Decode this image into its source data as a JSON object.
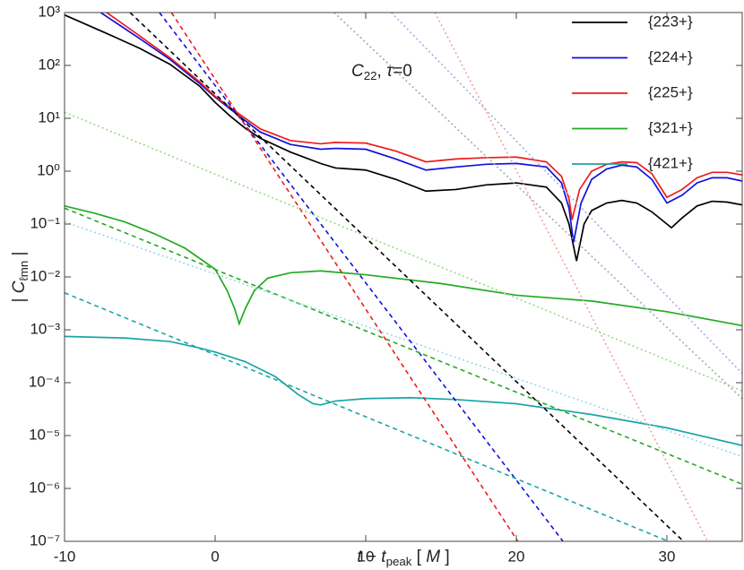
{
  "chart_data": {
    "type": "line",
    "annotation": [
      {
        "text": "C",
        "italic": true
      },
      {
        "text": "22",
        "sub": true
      },
      {
        "text": ", "
      },
      {
        "text": "τ",
        "italic": true
      },
      {
        "text": "=0"
      }
    ],
    "xlabel": [
      {
        "text": "t",
        "italic": true
      },
      {
        "text": " − "
      },
      {
        "text": "t",
        "italic": true
      },
      {
        "text": "peak",
        "sub": true
      },
      {
        "text": " [ "
      },
      {
        "text": "M",
        "italic": true
      },
      {
        "text": " ]"
      }
    ],
    "ylabel": [
      {
        "text": "| "
      },
      {
        "text": "C",
        "italic": true
      },
      {
        "text": "ℓmn",
        "sub": true
      },
      {
        "text": " |"
      }
    ],
    "xlim": [
      -10,
      35
    ],
    "xticks": [
      -10,
      0,
      10,
      20,
      30
    ],
    "ylim": [
      1e-07,
      1000
    ],
    "ylog": true,
    "yticks": [
      {
        "value": 1000,
        "label": "10³"
      },
      {
        "value": 100,
        "label": "10²"
      },
      {
        "value": 10,
        "label": "10¹"
      },
      {
        "value": 1,
        "label": "10⁰"
      },
      {
        "value": 0.1,
        "label": "10⁻¹"
      },
      {
        "value": 0.01,
        "label": "10⁻²"
      },
      {
        "value": 0.001,
        "label": "10⁻³"
      },
      {
        "value": 0.0001,
        "label": "10⁻⁴"
      },
      {
        "value": 1e-05,
        "label": "10⁻⁵"
      },
      {
        "value": 1e-06,
        "label": "10⁻⁶"
      },
      {
        "value": 1e-07,
        "label": "10⁻⁷"
      }
    ],
    "legend": "top-right",
    "series": [
      {
        "name": "{223+}",
        "color": "#000000",
        "dash": "solid",
        "x": [
          -10,
          -7,
          -5,
          -3,
          -1,
          0,
          1,
          2,
          3,
          5,
          7,
          8,
          10,
          12,
          14,
          16,
          18,
          20,
          22,
          23,
          23.5,
          24,
          24.5,
          25,
          26,
          27,
          28,
          29,
          30,
          30.3,
          31,
          32,
          33,
          34,
          35
        ],
        "values": [
          900,
          380,
          210,
          105,
          40,
          20,
          11,
          6.5,
          4.2,
          2.3,
          1.4,
          1.15,
          1.05,
          0.7,
          0.42,
          0.45,
          0.55,
          0.6,
          0.5,
          0.25,
          0.1,
          0.02,
          0.1,
          0.18,
          0.25,
          0.28,
          0.25,
          0.17,
          0.1,
          0.085,
          0.13,
          0.22,
          0.27,
          0.26,
          0.23
        ]
      },
      {
        "name": "{224+}",
        "color": "#1010e0",
        "dash": "solid",
        "x": [
          -7.6,
          -5,
          -3,
          -1,
          0,
          1,
          2,
          3,
          5,
          7,
          8,
          10,
          12,
          14,
          16,
          18,
          20,
          22,
          23,
          23.5,
          23.8,
          24.3,
          25,
          26,
          27,
          28,
          29,
          30,
          31,
          32,
          33,
          34,
          35
        ],
        "values": [
          1000,
          320,
          130,
          45,
          25,
          15,
          9,
          5.5,
          3.2,
          2.6,
          2.7,
          2.6,
          1.7,
          1.05,
          1.2,
          1.35,
          1.4,
          1.2,
          0.6,
          0.2,
          0.045,
          0.25,
          0.7,
          1.1,
          1.3,
          1.2,
          0.7,
          0.25,
          0.35,
          0.6,
          0.75,
          0.75,
          0.65
        ]
      },
      {
        "name": "{225+}",
        "color": "#ee1c1c",
        "dash": "solid",
        "x": [
          -7.2,
          -5,
          -3,
          -1,
          0,
          1,
          2,
          3,
          5,
          7,
          8,
          10,
          12,
          14,
          16,
          18,
          20,
          22,
          23,
          23.5,
          23.7,
          24.2,
          25,
          26,
          27,
          28,
          29,
          30,
          31,
          32,
          33,
          34,
          35
        ],
        "values": [
          1000,
          360,
          140,
          48,
          26,
          16,
          10,
          6.3,
          3.8,
          3.3,
          3.5,
          3.4,
          2.4,
          1.5,
          1.7,
          1.8,
          1.85,
          1.5,
          0.8,
          0.3,
          0.12,
          0.45,
          1.0,
          1.35,
          1.5,
          1.45,
          0.9,
          0.32,
          0.45,
          0.75,
          0.95,
          0.95,
          0.85
        ]
      },
      {
        "name": "{321+}",
        "color": "#22aa22",
        "dash": "solid",
        "x": [
          -10,
          -8,
          -6,
          -4,
          -2,
          0,
          0.8,
          1.3,
          1.6,
          2,
          2.6,
          3.5,
          5,
          7,
          10,
          15,
          20,
          25,
          30,
          35
        ],
        "values": [
          0.22,
          0.16,
          0.11,
          0.065,
          0.035,
          0.014,
          0.0055,
          0.0025,
          0.0013,
          0.0025,
          0.0055,
          0.0095,
          0.012,
          0.013,
          0.011,
          0.0075,
          0.0045,
          0.0035,
          0.0022,
          0.0012
        ]
      },
      {
        "name": "{421+}",
        "color": "#1aa5a5",
        "dash": "solid",
        "x": [
          -10,
          -6,
          -3,
          -1,
          0,
          2,
          4,
          5.5,
          6.5,
          7,
          8,
          10,
          13,
          16,
          20,
          25,
          30,
          35
        ],
        "values": [
          0.00075,
          0.0007,
          0.0006,
          0.00045,
          0.00038,
          0.00025,
          0.00013,
          6e-05,
          4e-05,
          3.8e-05,
          4.5e-05,
          5e-05,
          5.2e-05,
          4.8e-05,
          4e-05,
          2.5e-05,
          1.4e-05,
          6.5e-06
        ]
      },
      {
        "color": "#000000",
        "dash": "dashed",
        "x": [
          -5.65,
          31.1
        ],
        "values": [
          1000,
          1e-07
        ]
      },
      {
        "color": "#1010e0",
        "dash": "dashed",
        "x": [
          -3.7,
          23.1
        ],
        "values": [
          1000,
          1e-07
        ]
      },
      {
        "color": "#ee1c1c",
        "dash": "dashed",
        "x": [
          -2.9,
          20.1
        ],
        "values": [
          1000,
          1e-07
        ]
      },
      {
        "color": "#22aa22",
        "dash": "dashed",
        "x": [
          -10,
          35
        ],
        "values": [
          0.2,
          1.2e-06
        ]
      },
      {
        "color": "#1aa5a5",
        "dash": "dashed",
        "x": [
          -10,
          30.1
        ],
        "values": [
          0.005,
          1e-07
        ]
      },
      {
        "color": "#9ad88a",
        "dash": "dotted",
        "x": [
          -10,
          35
        ],
        "values": [
          13,
          7e-05
        ]
      },
      {
        "color": "#9ad8ea",
        "dash": "dotted",
        "x": [
          -10,
          35
        ],
        "values": [
          0.11,
          4e-06
        ]
      },
      {
        "color": "#a8a8a8",
        "dash": "dotted",
        "x": [
          7.9,
          35
        ],
        "values": [
          1000,
          5e-05
        ]
      },
      {
        "color": "#a8a8ee",
        "dash": "dotted",
        "x": [
          11.7,
          35
        ],
        "values": [
          1000,
          0.00015
        ]
      },
      {
        "color": "#f4a0a0",
        "dash": "dotted",
        "x": [
          14.6,
          32.7
        ],
        "values": [
          1000,
          1e-07
        ]
      }
    ]
  }
}
